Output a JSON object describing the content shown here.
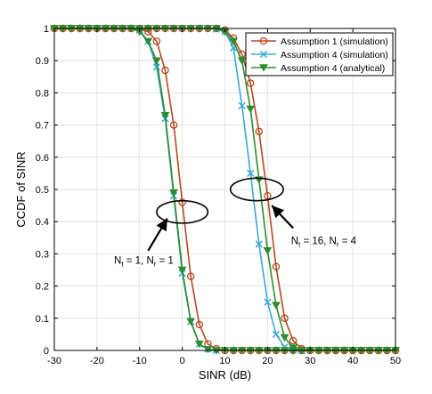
{
  "chart_data": {
    "type": "line",
    "xlabel": "SINR (dB)",
    "ylabel": "CCDF of SINR",
    "xlim": [
      -30,
      50
    ],
    "ylim": [
      0,
      1
    ],
    "xticks": [
      -30,
      -20,
      -10,
      0,
      10,
      20,
      30,
      40,
      50
    ],
    "yticks": [
      0,
      0.1,
      0.2,
      0.3,
      0.4,
      0.5,
      0.6,
      0.7,
      0.8,
      0.9,
      1
    ],
    "grid": true,
    "legend_position": "top-right",
    "series": [
      {
        "name": "Assumption 1 (simulation)",
        "color": "#b5491d",
        "marker": "circle",
        "groups": [
          {
            "x": [
              -30,
              -28,
              -26,
              -24,
              -22,
              -20,
              -18,
              -16,
              -14,
              -12,
              -10,
              -8,
              -6,
              -4,
              -2,
              0,
              2,
              4,
              6,
              8,
              10,
              12,
              14,
              16,
              18,
              20,
              22,
              24,
              26,
              28,
              30,
              32,
              34,
              36,
              38,
              40,
              42,
              44,
              46,
              48,
              50
            ],
            "y": [
              1,
              1,
              1,
              1,
              1,
              1,
              1,
              1,
              1,
              1,
              0.998,
              0.99,
              0.96,
              0.87,
              0.7,
              0.46,
              0.23,
              0.08,
              0.02,
              0.005,
              0,
              0,
              0,
              0,
              0,
              0,
              0,
              0,
              0,
              0,
              0,
              0,
              0,
              0,
              0,
              0,
              0,
              0,
              0,
              0,
              0
            ]
          },
          {
            "x": [
              -30,
              -28,
              -26,
              -24,
              -22,
              -20,
              -18,
              -16,
              -14,
              -12,
              -10,
              -8,
              -6,
              -4,
              -2,
              0,
              2,
              4,
              6,
              8,
              10,
              12,
              14,
              16,
              18,
              20,
              22,
              24,
              26,
              28,
              30,
              32,
              34,
              36,
              38,
              40,
              42,
              44,
              46,
              48,
              50
            ],
            "y": [
              1,
              1,
              1,
              1,
              1,
              1,
              1,
              1,
              1,
              1,
              1,
              1,
              1,
              1,
              1,
              1,
              1,
              1,
              1,
              1,
              0.995,
              0.97,
              0.92,
              0.83,
              0.68,
              0.48,
              0.26,
              0.1,
              0.03,
              0.005,
              0,
              0,
              0,
              0,
              0,
              0,
              0,
              0,
              0,
              0,
              0
            ]
          }
        ]
      },
      {
        "name": "Assumption 4 (simulation)",
        "color": "#3aa7d8",
        "marker": "x",
        "groups": [
          {
            "x": [
              -10,
              -8,
              -6,
              -4,
              -2,
              0,
              2,
              4,
              6,
              8
            ],
            "y": [
              0.995,
              0.96,
              0.88,
              0.72,
              0.48,
              0.24,
              0.09,
              0.02,
              0.004,
              0
            ]
          },
          {
            "x": [
              8,
              10,
              12,
              14,
              16,
              18,
              20,
              22,
              24,
              26,
              28
            ],
            "y": [
              0.998,
              0.99,
              0.94,
              0.76,
              0.55,
              0.33,
              0.15,
              0.05,
              0.01,
              0.002,
              0
            ]
          }
        ]
      },
      {
        "name": "Assumption 4 (analytical)",
        "color": "#2e8b2e",
        "marker": "triangle-down",
        "groups": [
          {
            "x": [
              -30,
              -28,
              -26,
              -24,
              -22,
              -20,
              -18,
              -16,
              -14,
              -12,
              -10,
              -8,
              -6,
              -4,
              -2,
              0,
              2,
              4,
              6,
              8,
              10,
              12,
              14,
              16,
              18,
              20,
              22,
              24,
              26,
              28,
              30,
              32,
              34,
              36,
              38,
              40,
              42,
              44,
              46,
              48,
              50
            ],
            "y": [
              1,
              1,
              1,
              1,
              1,
              1,
              1,
              1,
              1,
              1,
              0.99,
              0.96,
              0.9,
              0.73,
              0.49,
              0.25,
              0.09,
              0.02,
              0.003,
              0,
              0,
              0,
              0,
              0,
              0,
              0,
              0,
              0,
              0,
              0,
              0,
              0,
              0,
              0,
              0,
              0,
              0,
              0,
              0,
              0,
              0
            ]
          },
          {
            "x": [
              -30,
              -28,
              -26,
              -24,
              -22,
              -20,
              -18,
              -16,
              -14,
              -12,
              -10,
              -8,
              -6,
              -4,
              -2,
              0,
              2,
              4,
              6,
              8,
              10,
              12,
              14,
              16,
              18,
              20,
              22,
              24,
              26,
              28,
              30,
              32,
              34,
              36,
              38,
              40,
              42,
              44,
              46,
              48,
              50
            ],
            "y": [
              1,
              1,
              1,
              1,
              1,
              1,
              1,
              1,
              1,
              1,
              1,
              1,
              1,
              1,
              1,
              1,
              1,
              1,
              1,
              1,
              0.99,
              0.96,
              0.9,
              0.75,
              0.53,
              0.31,
              0.14,
              0.04,
              0.008,
              0,
              0,
              0,
              0,
              0,
              0,
              0,
              0,
              0,
              0,
              0,
              0
            ]
          }
        ]
      }
    ],
    "annotations": [
      {
        "id": "left-group",
        "text": "N_t = 1, N_r = 1",
        "ellipse_center": [
          0,
          0.43
        ],
        "ellipse_rx": 6,
        "ellipse_ry": 0.035,
        "arrow_from": [
          -8,
          0.31
        ],
        "arrow_to": [
          -3.5,
          0.41
        ],
        "text_at": [
          -16,
          0.27
        ]
      },
      {
        "id": "right-group",
        "text": "N_t = 16, N_r = 4",
        "ellipse_center": [
          17.5,
          0.5
        ],
        "ellipse_rx": 6.2,
        "ellipse_ry": 0.035,
        "arrow_from": [
          26,
          0.38
        ],
        "arrow_to": [
          21,
          0.45
        ],
        "text_at": [
          25.5,
          0.33
        ]
      }
    ],
    "annotation_labels": {
      "left": {
        "N": "N",
        "t_sub": "t",
        "mid": " = 1, N",
        "r_sub": "r",
        "end": " = 1"
      },
      "right": {
        "N": "N",
        "t_sub": "t",
        "mid": " = 16, N",
        "r_sub": "r",
        "end": " = 4"
      }
    }
  }
}
